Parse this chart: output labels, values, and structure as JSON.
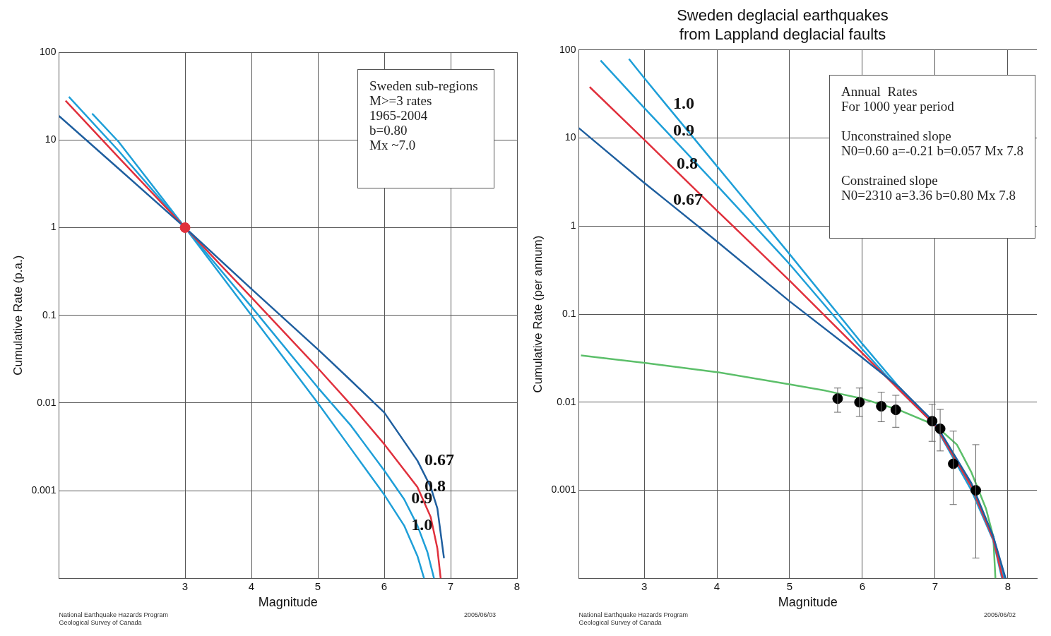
{
  "chart_data": [
    {
      "type": "line",
      "xlabel": "Magnitude",
      "ylabel": "Cumulative Rate (p.a.)",
      "log": "y",
      "grid": true,
      "marker": "none",
      "xlim": [
        1.1,
        8
      ],
      "xticks": [
        3,
        4,
        5,
        6,
        7,
        8
      ],
      "ylim": [
        0.0001,
        100
      ],
      "yticks": [
        {
          "value": 0.0001,
          "label": null
        },
        0.001,
        0.01,
        0.1,
        1,
        10,
        100
      ],
      "annotations": [
        "Sweden sub-regions\nM>=3 rates\n1965-2004\nb=0.80\nMx ~7.0",
        "National Earthquake Hazards Program\nGeological Survey of Canada",
        "2005/06/03",
        {
          "text": "0.67",
          "x": 6.5,
          "y": 0.0022
        },
        {
          "text": "0.8",
          "x": 6.5,
          "y": 0.0011
        },
        {
          "text": "0.9",
          "x": 6.3,
          "y": 0.0008
        },
        {
          "text": "1.0",
          "x": 6.3,
          "y": 0.0004
        }
      ],
      "series": [
        {
          "color": "#1f5f9f",
          "x": [
            1.1,
            2,
            3,
            4,
            5,
            5.5,
            6,
            6.5,
            6.7,
            6.8,
            6.9
          ],
          "values": [
            18.8,
            4.7,
            1,
            0.2,
            0.041,
            0.018,
            0.0078,
            0.0022,
            0.0011,
            0.00063,
            0.00017
          ]
        },
        {
          "color": "#e0303c",
          "x": [
            1.2,
            2,
            3,
            4,
            5,
            5.5,
            6,
            6.5,
            6.7,
            6.8,
            6.85
          ],
          "values": [
            28,
            6.3,
            1,
            0.16,
            0.025,
            0.0095,
            0.0034,
            0.0011,
            0.0005,
            0.00022,
            0.0001
          ]
        },
        {
          "color": "#1e9fd8",
          "x": [
            1.25,
            2,
            3,
            4,
            5,
            5.5,
            6,
            6.3,
            6.5,
            6.65,
            6.75
          ],
          "values": [
            31,
            7.5,
            1,
            0.125,
            0.015,
            0.0055,
            0.0017,
            0.0008,
            0.0004,
            0.0002,
            0.0001
          ]
        },
        {
          "color": "#1e9fd8",
          "x": [
            1.6,
            2,
            3,
            4,
            5,
            5.5,
            6,
            6.3,
            6.5,
            6.6
          ],
          "values": [
            20,
            9.5,
            1,
            0.1,
            0.01,
            0.003,
            0.0009,
            0.0004,
            0.00018,
            0.0001
          ]
        },
        {
          "type": "scatter",
          "marker": "circle",
          "color": "#e0303c",
          "x": [
            3
          ],
          "values": [
            1
          ]
        }
      ]
    },
    {
      "type": "line",
      "title": "Sweden deglacial earthquakes\nfrom Lappland deglacial faults",
      "xlabel": "Magnitude",
      "ylabel": "Cumulative Rate (per annum)",
      "log": "y",
      "grid": true,
      "marker": "none",
      "xlim": [
        2.1,
        8.4
      ],
      "xticks": [
        3,
        4,
        5,
        6,
        7,
        8
      ],
      "ylim": [
        0.0001,
        100
      ],
      "yticks": [
        {
          "value": 0.0001,
          "label": null
        },
        0.001,
        0.01,
        0.1,
        1,
        10,
        100
      ],
      "annotations": [
        "Annual  Rates\nFor 1000 year period\n\nUnconstrained slope\nN0=0.60 a=-0.21 b=0.057 Mx 7.8\n\nConstrained slope\nN0=2310 a=3.36 b=0.80 Mx 7.8",
        "National Earthquake Hazards Program\nGeological Survey of Canada",
        "2005/06/02",
        {
          "text": "1.0",
          "x": 3.3,
          "y": 24
        },
        {
          "text": "0.9",
          "x": 3.3,
          "y": 12
        },
        {
          "text": "0.8",
          "x": 3.35,
          "y": 5
        },
        {
          "text": "0.67",
          "x": 3.3,
          "y": 1.96
        }
      ],
      "series": [
        {
          "color": "#1f5f9f",
          "x": [
            2.1,
            3,
            3.3,
            4,
            5,
            6,
            6.5,
            7,
            7.5,
            7.8,
            7.97
          ],
          "values": [
            13,
            3.1,
            1.96,
            0.67,
            0.14,
            0.032,
            0.015,
            0.0058,
            0.0012,
            0.0003,
            0.0001
          ]
        },
        {
          "color": "#e0303c",
          "x": [
            2.25,
            3,
            3.35,
            4,
            5,
            6,
            6.5,
            7,
            7.5,
            7.8,
            7.93
          ],
          "values": [
            38,
            9.6,
            5,
            1.5,
            0.24,
            0.036,
            0.014,
            0.0055,
            0.0011,
            0.00028,
            0.0001
          ]
        },
        {
          "color": "#1e9fd8",
          "x": [
            2.4,
            3,
            3.3,
            4,
            5,
            6,
            6.5,
            7,
            7.5,
            7.8,
            7.95
          ],
          "values": [
            76,
            22,
            12,
            2.9,
            0.37,
            0.04,
            0.014,
            0.0055,
            0.0011,
            0.0003,
            0.0001
          ]
        },
        {
          "color": "#1e9fd8",
          "x": [
            2.79,
            3,
            3.3,
            4,
            5,
            6,
            6.5,
            7,
            7.5,
            7.8,
            7.92
          ],
          "values": [
            79,
            48,
            24,
            4.8,
            0.48,
            0.046,
            0.015,
            0.0054,
            0.001,
            0.00027,
            0.0001
          ]
        },
        {
          "color": "#5cbf6a",
          "x": [
            2.13,
            3,
            4,
            5,
            5.5,
            6,
            6.5,
            7,
            7.3,
            7.5,
            7.7,
            7.8,
            7.83
          ],
          "values": [
            0.034,
            0.028,
            0.022,
            0.016,
            0.0135,
            0.011,
            0.0082,
            0.0055,
            0.0033,
            0.0016,
            0.00062,
            0.0003,
            0.0001
          ]
        },
        {
          "type": "scatter",
          "marker": "circle",
          "color": "#000000",
          "x": [
            5.66,
            5.96,
            6.26,
            6.46,
            6.96,
            7.07,
            7.25,
            7.56
          ],
          "values": [
            0.011,
            0.01,
            0.009,
            0.0082,
            0.0061,
            0.005,
            0.002,
            0.001
          ],
          "errors": [
            [
              0.0077,
              0.0145
            ],
            [
              0.0069,
              0.0145
            ],
            [
              0.006,
              0.013
            ],
            [
              0.0052,
              0.012
            ],
            [
              0.0036,
              0.0095
            ],
            [
              0.0028,
              0.0083
            ],
            [
              0.00069,
              0.0047
            ],
            [
              0.00017,
              0.0033
            ]
          ]
        }
      ]
    }
  ]
}
